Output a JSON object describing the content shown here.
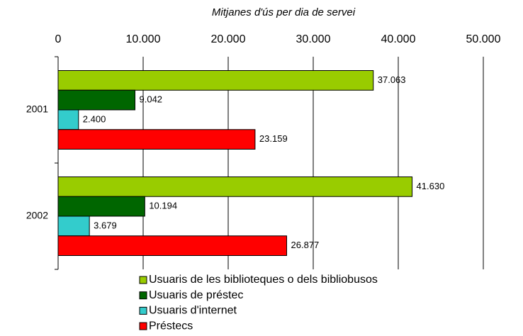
{
  "chart_data": {
    "type": "hbar",
    "title": "Mitjanes d'ús per dia de servei",
    "categories": [
      "2001",
      "2002"
    ],
    "series": [
      {
        "name": "Usuaris de les biblioteques o dels bibliobusos",
        "color": "#99cc00",
        "values": [
          37063,
          41630
        ],
        "value_labels": [
          "37.063",
          "41.630"
        ]
      },
      {
        "name": "Usuaris de préstec",
        "color": "#006600",
        "values": [
          9042,
          10194
        ],
        "value_labels": [
          "9.042",
          "10.194"
        ]
      },
      {
        "name": "Usuaris d'internet",
        "color": "#33cccc",
        "values": [
          2400,
          3679
        ],
        "value_labels": [
          "2.400",
          "3.679"
        ]
      },
      {
        "name": "Préstecs",
        "color": "#ff0000",
        "values": [
          23159,
          26877
        ],
        "value_labels": [
          "23.159",
          "26.877"
        ]
      }
    ],
    "xlim": [
      0,
      50000
    ],
    "xticks": [
      0,
      {
        "value": 10000,
        "label": "10.000"
      },
      {
        "value": 20000,
        "label": "20.000"
      },
      {
        "value": 30000,
        "label": "30.000"
      },
      {
        "value": 40000,
        "label": "40.000"
      },
      {
        "value": 50000,
        "label": "50.000"
      }
    ],
    "grid": true
  }
}
